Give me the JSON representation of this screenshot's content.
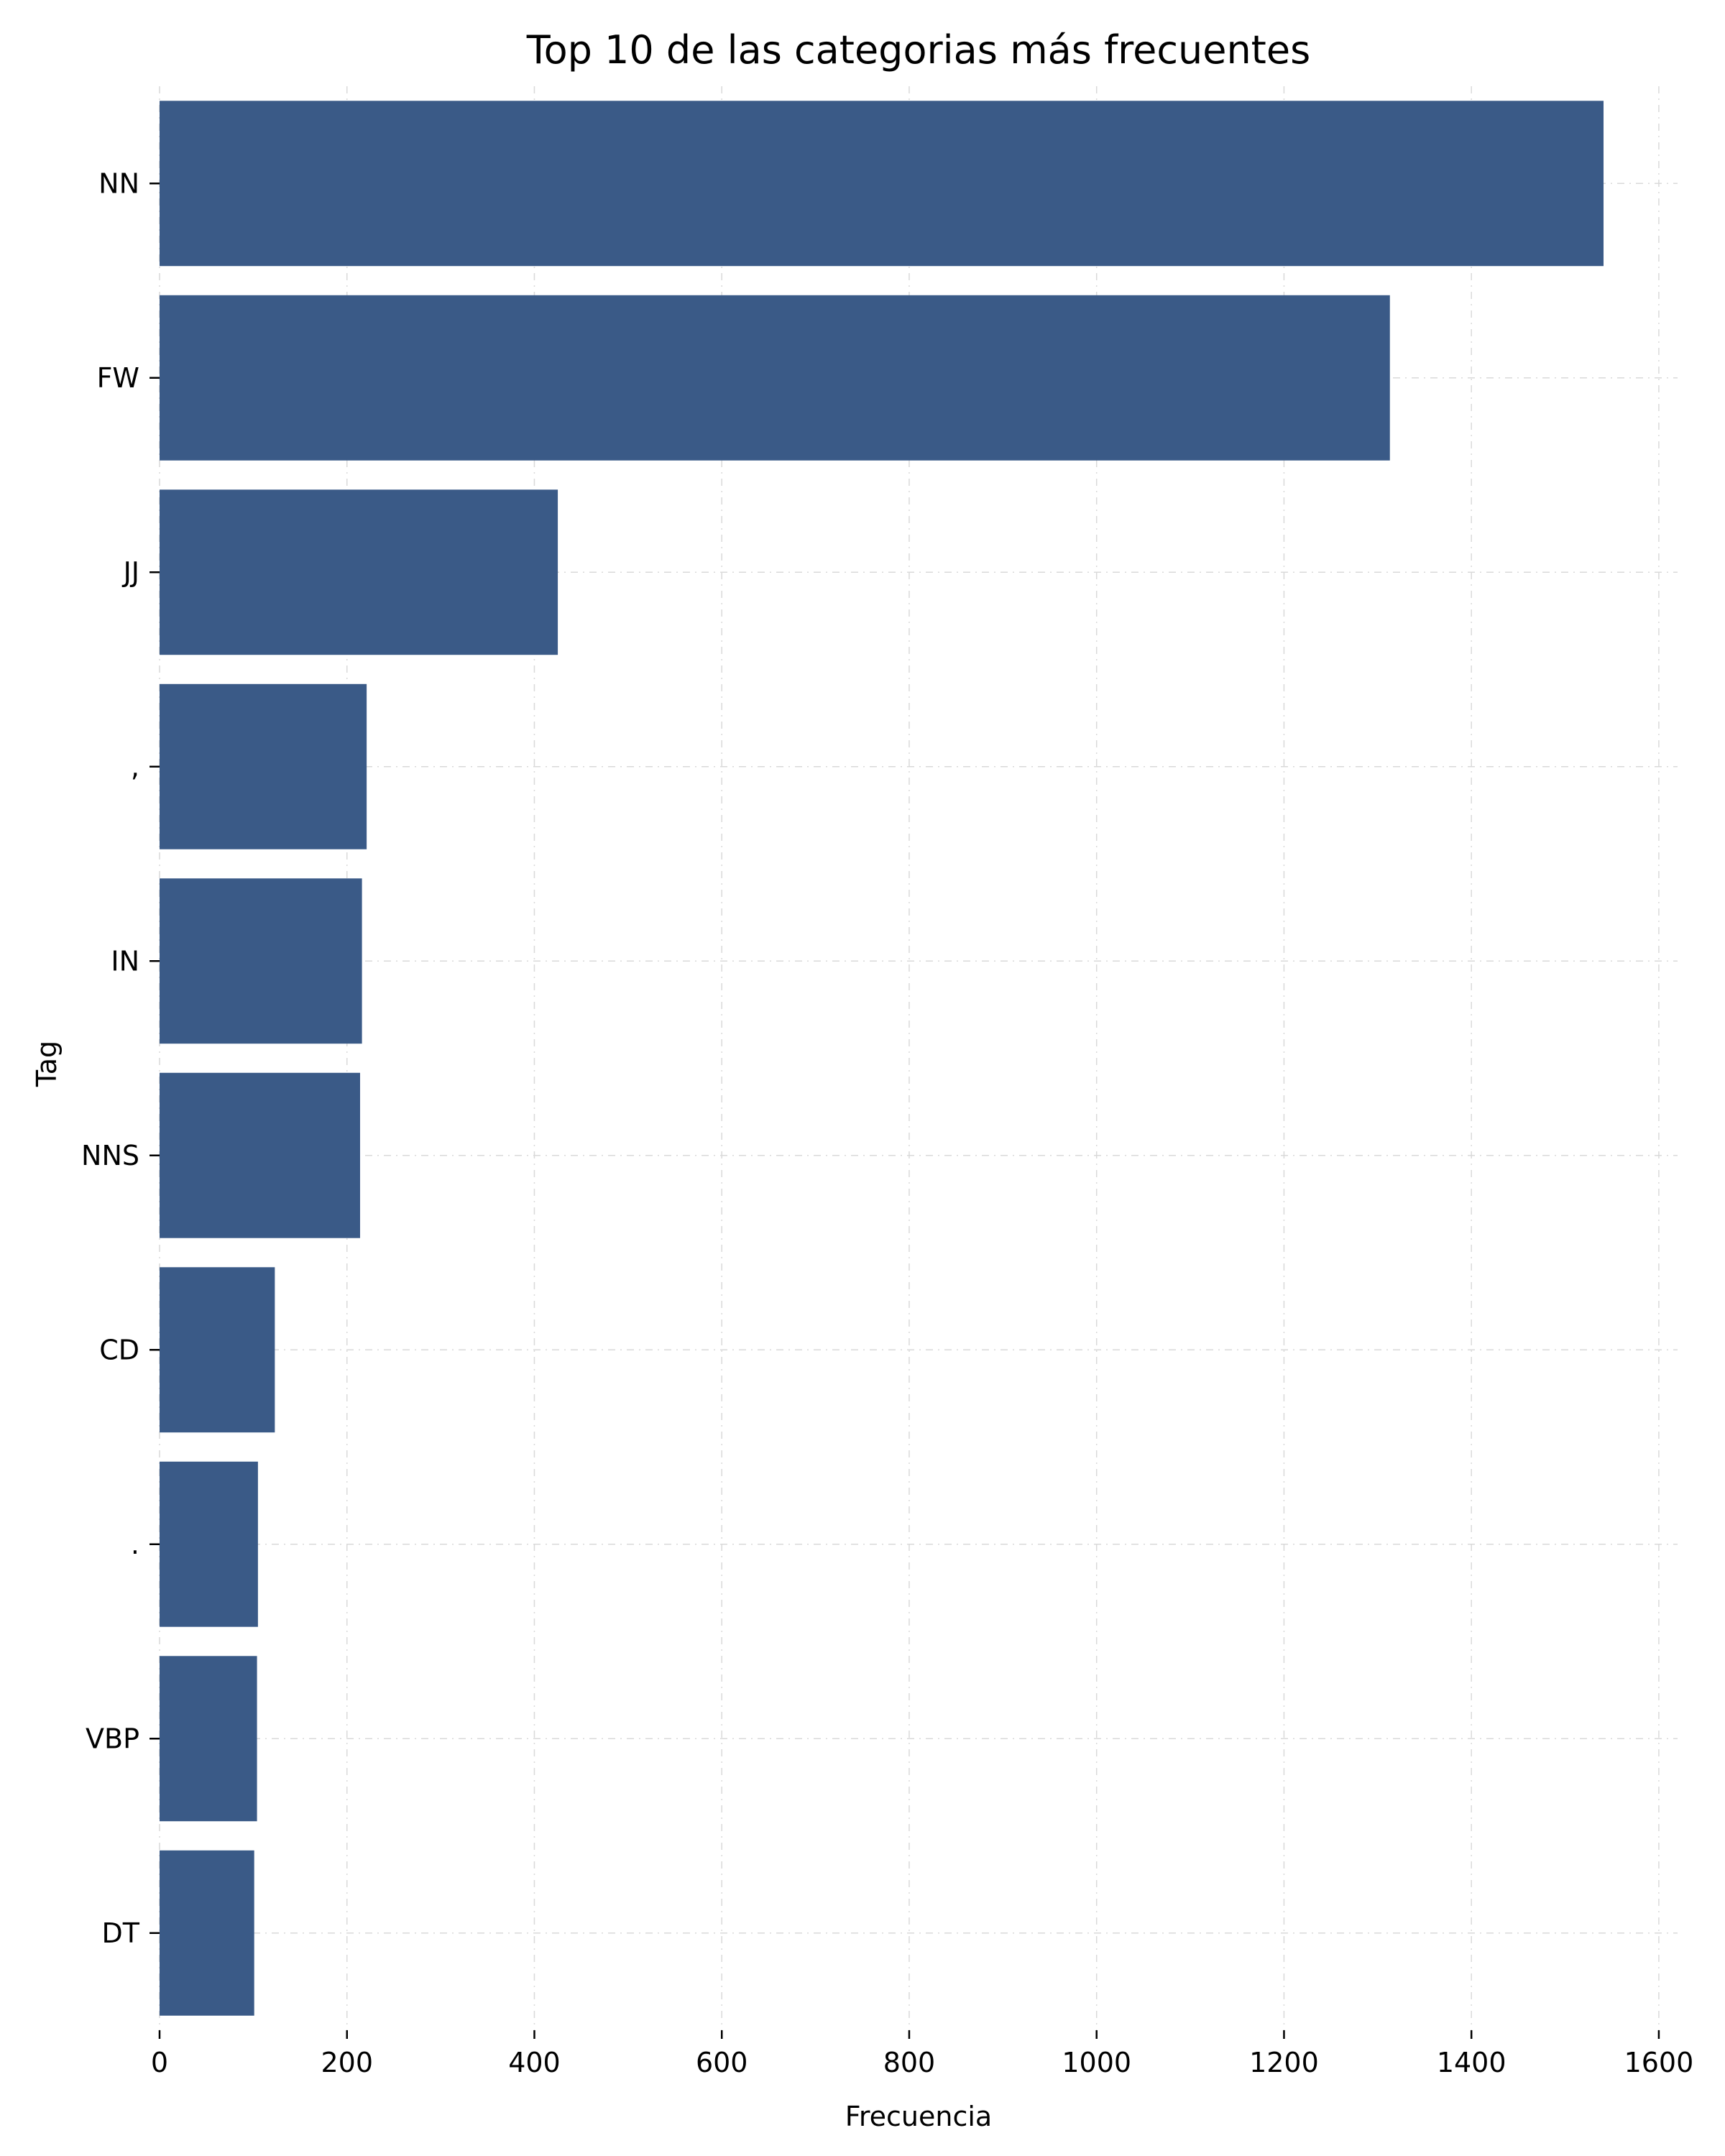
{
  "chart_data": {
    "type": "bar",
    "orientation": "horizontal",
    "title": "Top 10 de las categorias más frecuentes",
    "xlabel": "Frecuencia",
    "ylabel": "Tag",
    "categories": [
      "NN",
      "FW",
      "JJ",
      ",",
      "IN",
      "NNS",
      "CD",
      ".",
      "VBP",
      "DT"
    ],
    "values": [
      1541,
      1313,
      425,
      221,
      216,
      214,
      123,
      105,
      104,
      101
    ],
    "xlim": [
      0,
      1620
    ],
    "xticks": [
      0,
      200,
      400,
      600,
      800,
      1000,
      1200,
      1400,
      1600
    ],
    "grid": true,
    "bar_color": "#3a5a87"
  }
}
